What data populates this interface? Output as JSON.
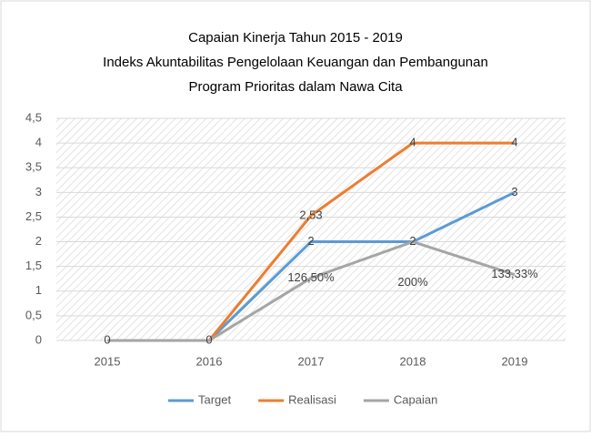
{
  "chart_data": {
    "type": "line",
    "title": [
      "Capaian Kinerja Tahun 2015 - 2019",
      "Indeks Akuntabilitas Pengelolaan Keuangan dan Pembangunan",
      "Program Prioritas dalam Nawa Cita"
    ],
    "categories": [
      "2015",
      "2016",
      "2017",
      "2018",
      "2019"
    ],
    "series": [
      {
        "name": "Target",
        "color": "#5b9bd5",
        "values": [
          0,
          0,
          2,
          2,
          3
        ],
        "value_labels": [
          "0",
          "0",
          "2",
          "2",
          "3"
        ]
      },
      {
        "name": "Realisasi",
        "color": "#ed7d31",
        "values": [
          0,
          0,
          2.53,
          4,
          4
        ],
        "value_labels": [
          null,
          null,
          "2,53",
          "4",
          "4"
        ]
      },
      {
        "name": "Capaian",
        "color": "#a5a5a5",
        "values": [
          0,
          0,
          1.265,
          2,
          1.3333
        ],
        "value_labels": [
          null,
          null,
          "126,50%",
          "200%",
          "133,33%"
        ]
      }
    ],
    "ylim": [
      0,
      4.5
    ],
    "yticks": [
      0,
      {
        "value": 0.5,
        "label": "0,5"
      },
      1,
      {
        "value": 1.5,
        "label": "1,5"
      },
      2,
      {
        "value": 2.5,
        "label": "2,5"
      },
      3,
      {
        "value": 3.5,
        "label": "3,5"
      },
      4,
      {
        "value": 4.5,
        "label": "4,5"
      }
    ],
    "grid": true,
    "legend": "bottom"
  }
}
